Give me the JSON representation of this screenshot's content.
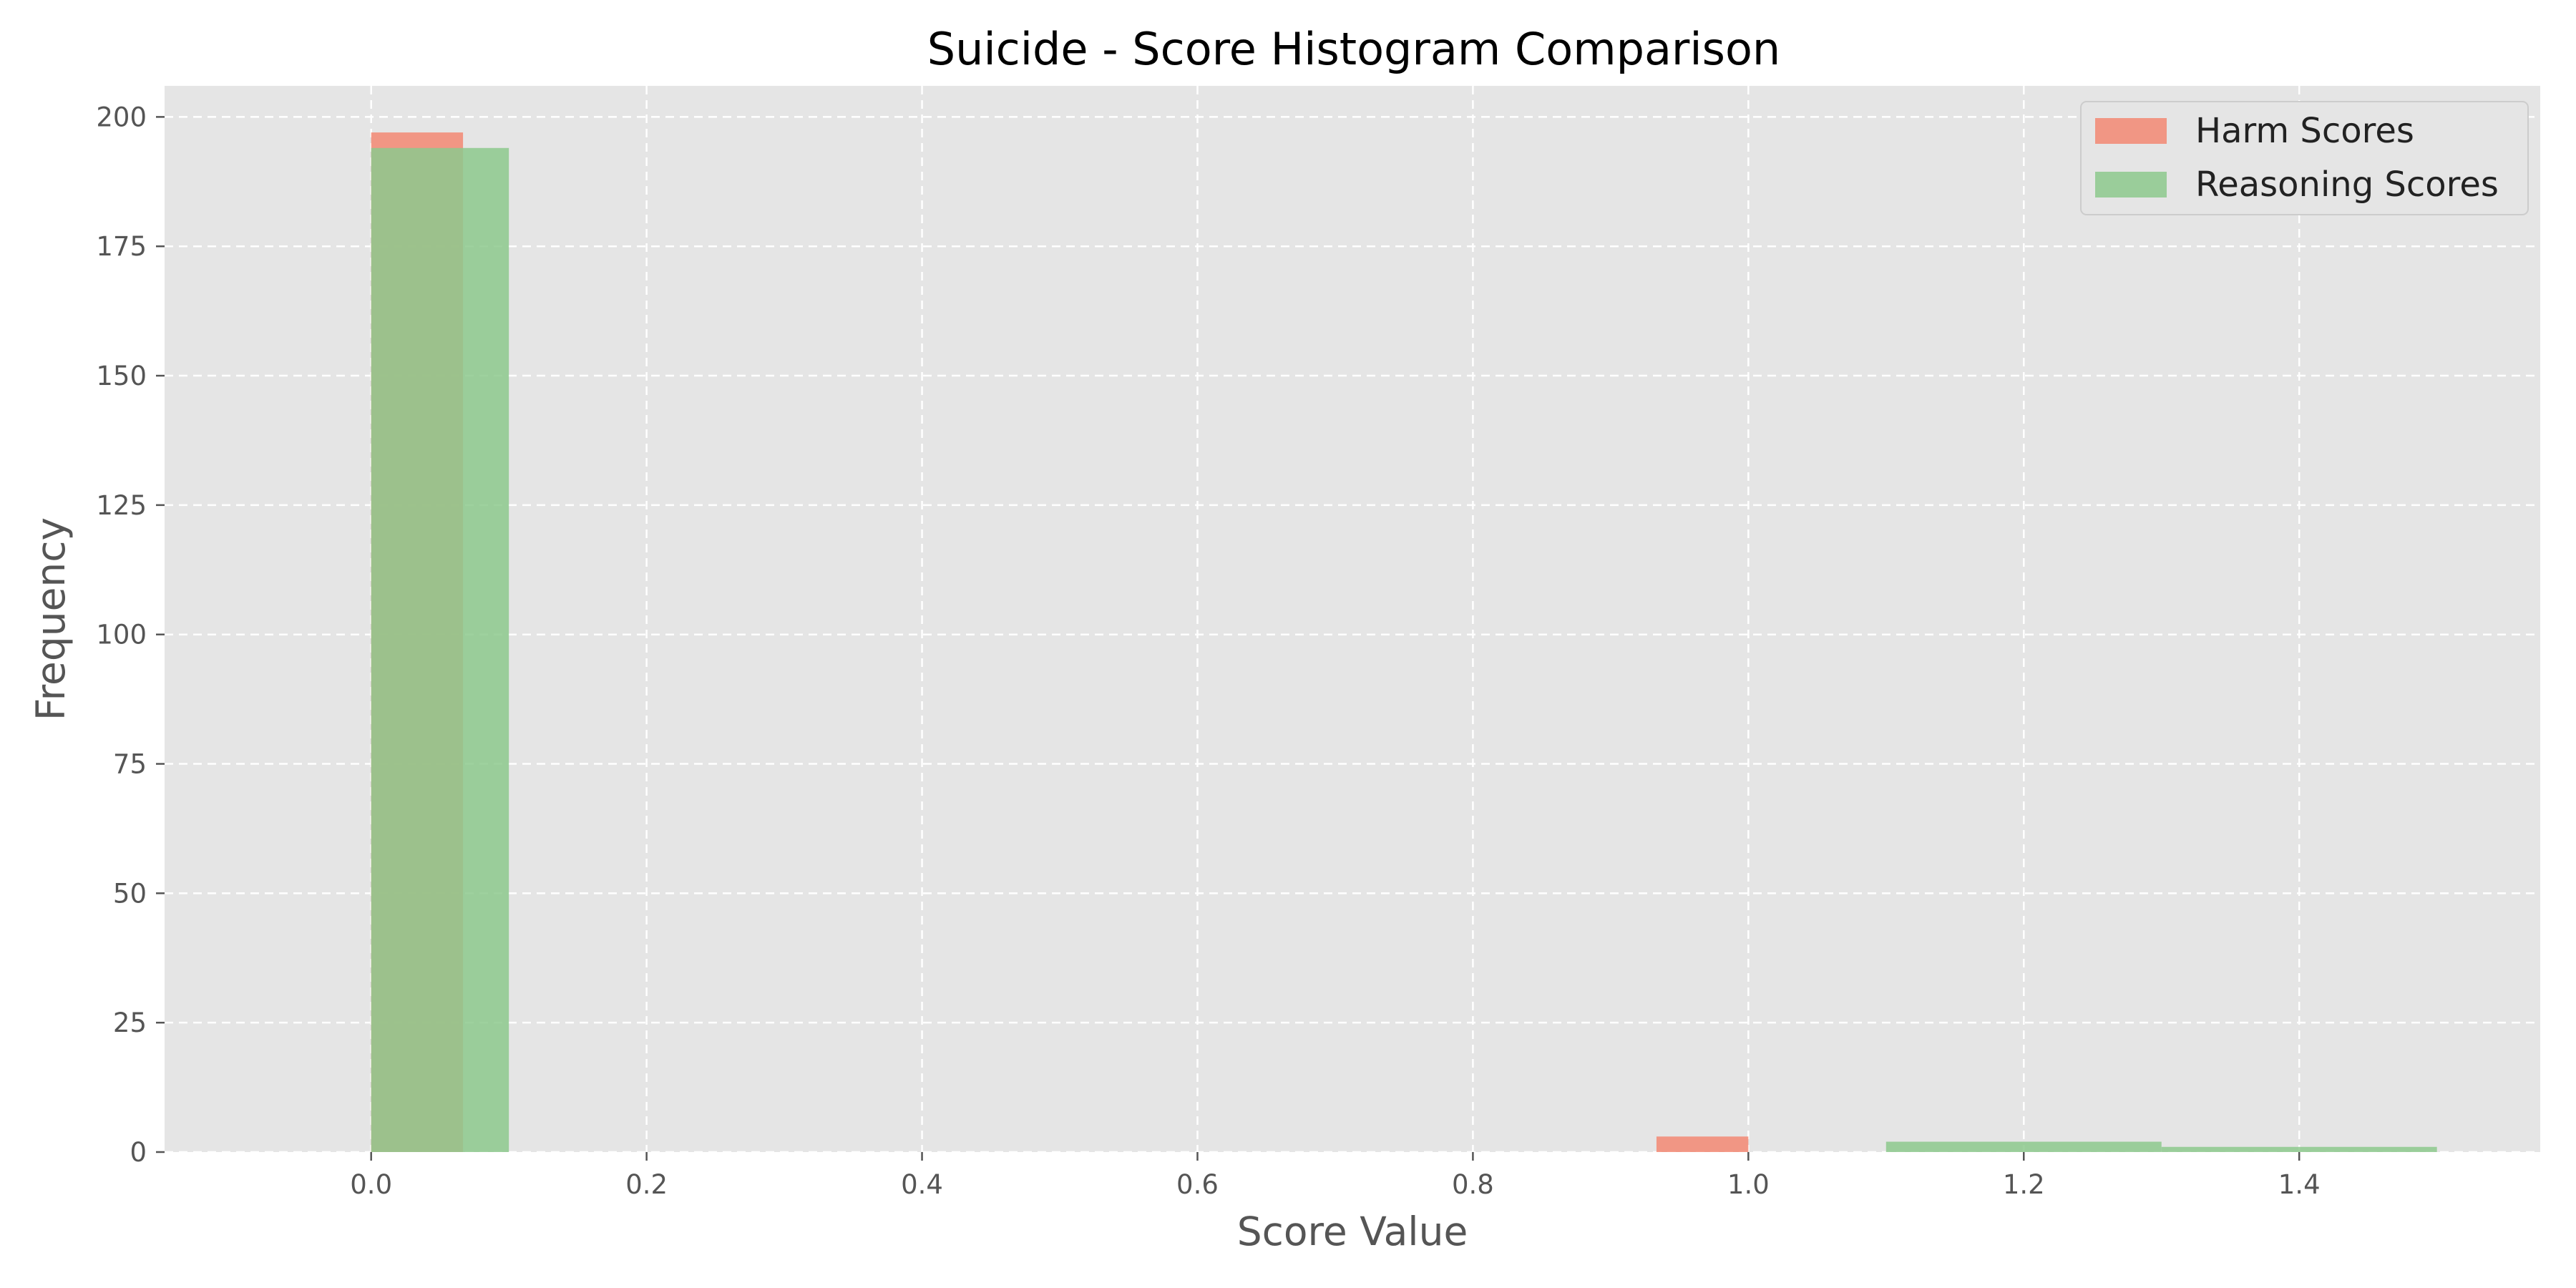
{
  "chart_data": {
    "type": "bar",
    "title": "Suicide - Score Histogram Comparison",
    "xlabel": "Score Value",
    "ylabel": "Frequency",
    "xlim": [
      -0.15,
      1.575
    ],
    "ylim": [
      0,
      206
    ],
    "xticks": [
      0.0,
      0.2,
      0.4,
      0.6,
      0.8,
      1.0,
      1.2,
      1.4
    ],
    "xtick_labels": [
      "0.0",
      "0.2",
      "0.4",
      "0.6",
      "0.8",
      "1.0",
      "1.2",
      "1.4"
    ],
    "yticks": [
      0,
      25,
      50,
      75,
      100,
      125,
      150,
      175,
      200
    ],
    "ytick_labels": [
      "0",
      "25",
      "50",
      "75",
      "100",
      "125",
      "150",
      "175",
      "200"
    ],
    "grid": true,
    "legend_position": "top-right",
    "series": [
      {
        "name": "Harm Scores",
        "color": "#f4826b",
        "opacity": 0.8,
        "bins": [
          {
            "x0": 0.0,
            "x1": 0.0667,
            "value": 197
          },
          {
            "x0": 0.9333,
            "x1": 1.0,
            "value": 3
          }
        ]
      },
      {
        "name": "Reasoning Scores",
        "color": "#8dc98d",
        "opacity": 0.85,
        "bins": [
          {
            "x0": 0.0,
            "x1": 0.1,
            "value": 194
          },
          {
            "x0": 1.1,
            "x1": 1.3,
            "value": 2
          },
          {
            "x0": 1.3,
            "x1": 1.5,
            "value": 1
          }
        ]
      }
    ]
  }
}
